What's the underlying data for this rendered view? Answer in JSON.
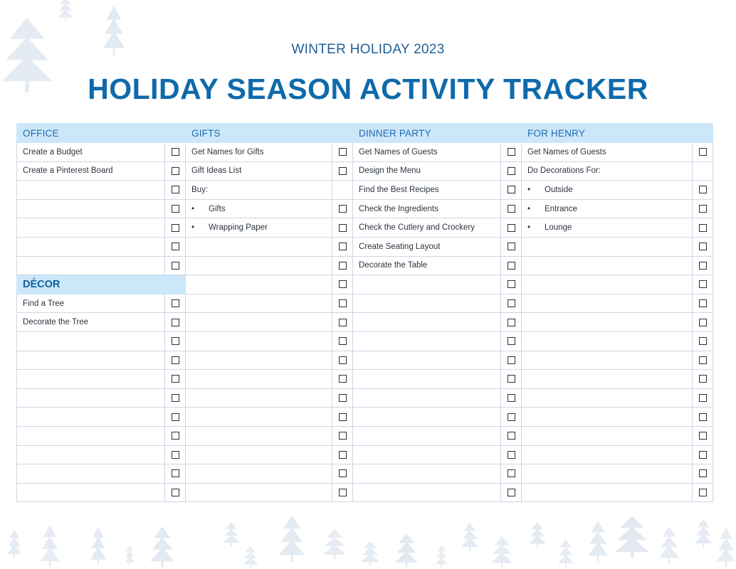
{
  "header": {
    "subtitle": "WINTER HOLIDAY 2023",
    "title": "HOLIDAY SEASON ACTIVITY TRACKER"
  },
  "colors": {
    "title": "#0e6aab",
    "subtitle": "#1f5f98",
    "header_fill": "#cce7fa",
    "header_text": "#1f6bb0",
    "tree_decoration": "#dfe7ef"
  },
  "icons": {
    "checkbox": "checkbox-icon",
    "bullet": "bullet-icon",
    "decoration": "pine-tree-icon"
  },
  "columns": [
    {
      "heading": "OFFICE",
      "items": [
        {
          "text": "Create a Budget",
          "bullet": false,
          "checkbox": true
        },
        {
          "text": "Create a Pinterest Board",
          "bullet": false,
          "checkbox": true
        },
        {
          "text": "",
          "bullet": false,
          "checkbox": true
        },
        {
          "text": "",
          "bullet": false,
          "checkbox": true
        },
        {
          "text": "",
          "bullet": false,
          "checkbox": true
        },
        {
          "text": "",
          "bullet": false,
          "checkbox": true
        },
        {
          "text": "",
          "bullet": false,
          "checkbox": true
        }
      ],
      "subsection": {
        "heading": "DÉCOR",
        "items": [
          {
            "text": "Find a Tree",
            "bullet": false,
            "checkbox": true
          },
          {
            "text": "Decorate the Tree",
            "bullet": false,
            "checkbox": true
          },
          {
            "text": "",
            "bullet": false,
            "checkbox": true
          },
          {
            "text": "",
            "bullet": false,
            "checkbox": true
          },
          {
            "text": "",
            "bullet": false,
            "checkbox": true
          },
          {
            "text": "",
            "bullet": false,
            "checkbox": true
          },
          {
            "text": "",
            "bullet": false,
            "checkbox": true
          },
          {
            "text": "",
            "bullet": false,
            "checkbox": true
          },
          {
            "text": "",
            "bullet": false,
            "checkbox": true
          },
          {
            "text": "",
            "bullet": false,
            "checkbox": true
          },
          {
            "text": "",
            "bullet": false,
            "checkbox": true
          }
        ]
      }
    },
    {
      "heading": "GIFTS",
      "items": [
        {
          "text": "Get Names for Gifts",
          "bullet": false,
          "checkbox": true
        },
        {
          "text": "Gift Ideas List",
          "bullet": false,
          "checkbox": true
        },
        {
          "text": "Buy:",
          "bullet": false,
          "checkbox": false
        },
        {
          "text": "Gifts",
          "bullet": true,
          "checkbox": true
        },
        {
          "text": "Wrapping Paper",
          "bullet": true,
          "checkbox": true
        },
        {
          "text": "",
          "bullet": false,
          "checkbox": true
        },
        {
          "text": "",
          "bullet": false,
          "checkbox": true
        },
        {
          "text": "",
          "bullet": false,
          "checkbox": true
        },
        {
          "text": "",
          "bullet": false,
          "checkbox": true
        },
        {
          "text": "",
          "bullet": false,
          "checkbox": true
        },
        {
          "text": "",
          "bullet": false,
          "checkbox": true
        },
        {
          "text": "",
          "bullet": false,
          "checkbox": true
        },
        {
          "text": "",
          "bullet": false,
          "checkbox": true
        },
        {
          "text": "",
          "bullet": false,
          "checkbox": true
        },
        {
          "text": "",
          "bullet": false,
          "checkbox": true
        },
        {
          "text": "",
          "bullet": false,
          "checkbox": true
        },
        {
          "text": "",
          "bullet": false,
          "checkbox": true
        },
        {
          "text": "",
          "bullet": false,
          "checkbox": true
        },
        {
          "text": "",
          "bullet": false,
          "checkbox": true
        }
      ]
    },
    {
      "heading": "DINNER PARTY",
      "items": [
        {
          "text": "Get Names of Guests",
          "bullet": false,
          "checkbox": true
        },
        {
          "text": "Design the Menu",
          "bullet": false,
          "checkbox": true
        },
        {
          "text": "Find the Best Recipes",
          "bullet": false,
          "checkbox": true
        },
        {
          "text": "Check the Ingredients",
          "bullet": false,
          "checkbox": true
        },
        {
          "text": "Check the Cutlery and Crockery",
          "bullet": false,
          "checkbox": true
        },
        {
          "text": "Create Seating Layout",
          "bullet": false,
          "checkbox": true
        },
        {
          "text": "Decorate the Table",
          "bullet": false,
          "checkbox": true
        },
        {
          "text": "",
          "bullet": false,
          "checkbox": true
        },
        {
          "text": "",
          "bullet": false,
          "checkbox": true
        },
        {
          "text": "",
          "bullet": false,
          "checkbox": true
        },
        {
          "text": "",
          "bullet": false,
          "checkbox": true
        },
        {
          "text": "",
          "bullet": false,
          "checkbox": true
        },
        {
          "text": "",
          "bullet": false,
          "checkbox": true
        },
        {
          "text": "",
          "bullet": false,
          "checkbox": true
        },
        {
          "text": "",
          "bullet": false,
          "checkbox": true
        },
        {
          "text": "",
          "bullet": false,
          "checkbox": true
        },
        {
          "text": "",
          "bullet": false,
          "checkbox": true
        },
        {
          "text": "",
          "bullet": false,
          "checkbox": true
        },
        {
          "text": "",
          "bullet": false,
          "checkbox": true
        }
      ]
    },
    {
      "heading": "FOR HENRY",
      "items": [
        {
          "text": "Get Names of Guests",
          "bullet": false,
          "checkbox": true
        },
        {
          "text": "Do Decorations For:",
          "bullet": false,
          "checkbox": false
        },
        {
          "text": "Outside",
          "bullet": true,
          "checkbox": true
        },
        {
          "text": "Entrance",
          "bullet": true,
          "checkbox": true
        },
        {
          "text": "Lounge",
          "bullet": true,
          "checkbox": true
        },
        {
          "text": "",
          "bullet": false,
          "checkbox": true
        },
        {
          "text": "",
          "bullet": false,
          "checkbox": true
        },
        {
          "text": "",
          "bullet": false,
          "checkbox": true
        },
        {
          "text": "",
          "bullet": false,
          "checkbox": true
        },
        {
          "text": "",
          "bullet": false,
          "checkbox": true
        },
        {
          "text": "",
          "bullet": false,
          "checkbox": true
        },
        {
          "text": "",
          "bullet": false,
          "checkbox": true
        },
        {
          "text": "",
          "bullet": false,
          "checkbox": true
        },
        {
          "text": "",
          "bullet": false,
          "checkbox": true
        },
        {
          "text": "",
          "bullet": false,
          "checkbox": true
        },
        {
          "text": "",
          "bullet": false,
          "checkbox": true
        },
        {
          "text": "",
          "bullet": false,
          "checkbox": true
        },
        {
          "text": "",
          "bullet": false,
          "checkbox": true
        },
        {
          "text": "",
          "bullet": false,
          "checkbox": true
        }
      ]
    }
  ]
}
